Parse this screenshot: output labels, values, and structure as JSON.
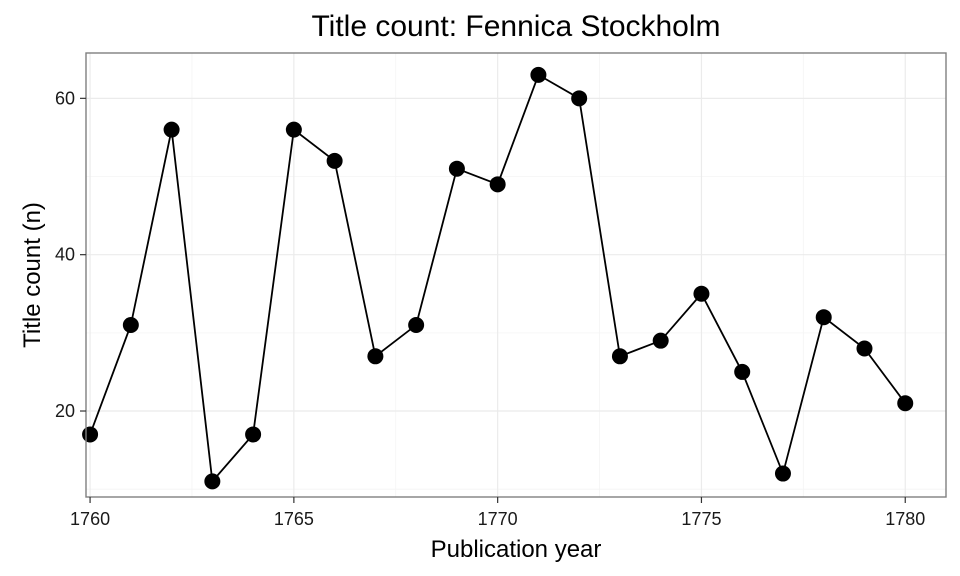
{
  "chart_data": {
    "type": "line",
    "title": "Title count: Fennica Stockholm",
    "xlabel": "Publication year",
    "ylabel": "Title count (n)",
    "xlim": [
      1759.9,
      1781.0
    ],
    "ylim": [
      9.0,
      65.8
    ],
    "x_ticks": [
      1760,
      1765,
      1770,
      1775,
      1780
    ],
    "y_ticks": [
      20,
      40,
      60
    ],
    "grid": true,
    "legend": "none",
    "series": [
      {
        "color": "#000000",
        "points": [
          {
            "x": 1760,
            "y": 17
          },
          {
            "x": 1761,
            "y": 31
          },
          {
            "x": 1762,
            "y": 56
          },
          {
            "x": 1763,
            "y": 11
          },
          {
            "x": 1764,
            "y": 17
          },
          {
            "x": 1765,
            "y": 56
          },
          {
            "x": 1766,
            "y": 52
          },
          {
            "x": 1767,
            "y": 27
          },
          {
            "x": 1768,
            "y": 31
          },
          {
            "x": 1769,
            "y": 51
          },
          {
            "x": 1770,
            "y": 49
          },
          {
            "x": 1771,
            "y": 63
          },
          {
            "x": 1772,
            "y": 60
          },
          {
            "x": 1773,
            "y": 27
          },
          {
            "x": 1774,
            "y": 29
          },
          {
            "x": 1775,
            "y": 35
          },
          {
            "x": 1776,
            "y": 25
          },
          {
            "x": 1777,
            "y": 12
          },
          {
            "x": 1778,
            "y": 32
          },
          {
            "x": 1779,
            "y": 28
          },
          {
            "x": 1780,
            "y": 21
          }
        ]
      }
    ]
  }
}
